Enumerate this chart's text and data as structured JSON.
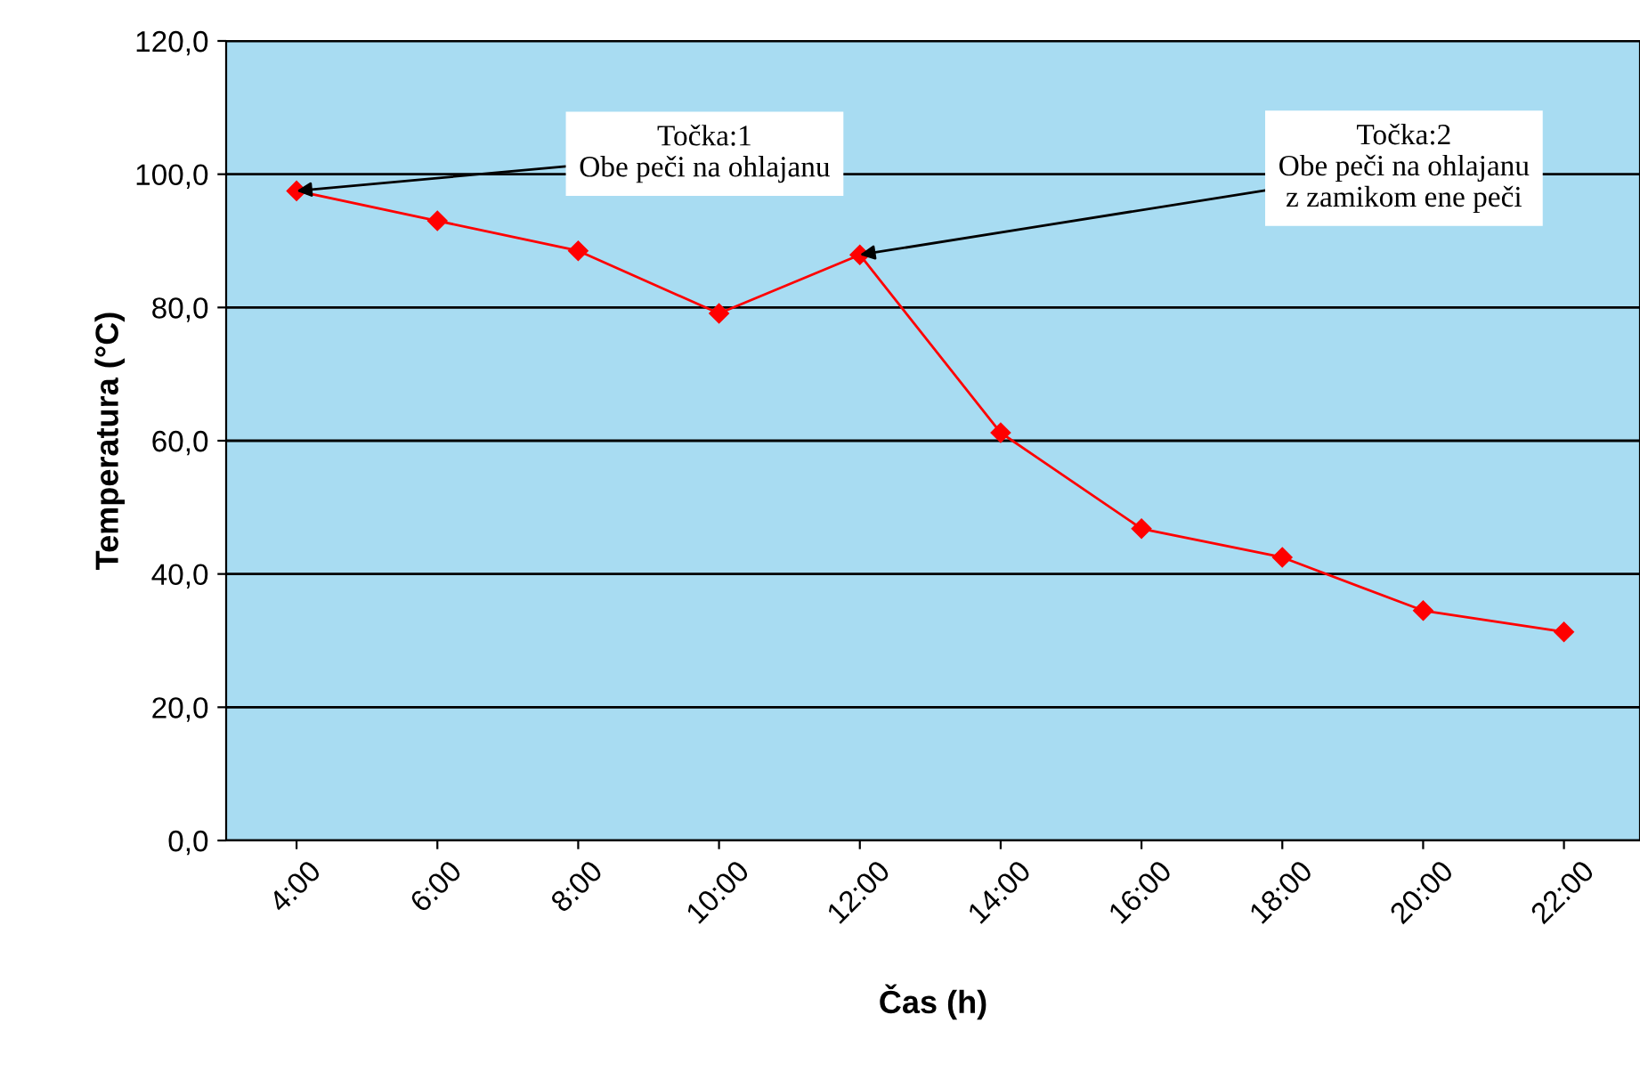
{
  "chart_data": {
    "type": "line",
    "xlabel": "Čas (h)",
    "ylabel": "Temperatura (°C)",
    "categories": [
      "4:00",
      "6:00",
      "8:00",
      "10:00",
      "12:00",
      "14:00",
      "16:00",
      "18:00",
      "20:00",
      "22:00"
    ],
    "series": [
      {
        "color": "#ff0000",
        "values": [
          97.5,
          93.0,
          88.5,
          79.1,
          87.9,
          61.2,
          46.8,
          42.5,
          34.5,
          31.3
        ]
      }
    ],
    "ylim": [
      0,
      120
    ],
    "yticks": [
      {
        "value": 0,
        "label": "0,0"
      },
      {
        "value": 20,
        "label": "20,0"
      },
      {
        "value": 40,
        "label": "40,0"
      },
      {
        "value": 60,
        "label": "60,0"
      },
      {
        "value": 80,
        "label": "80,0"
      },
      {
        "value": 100,
        "label": "100,0"
      },
      {
        "value": 120,
        "label": "120,0"
      }
    ],
    "grid": "y",
    "marker": "diamond",
    "line_style": "solid",
    "legend": false,
    "annotations": [
      {
        "text": "Točka:1\nObe peči na ohlajanu",
        "x": "4:00",
        "y": 97.5
      },
      {
        "text": "Točka:2\nObe peči na ohlajanu\nz zamikom ene peči",
        "x": "12:00",
        "y": 87.9
      }
    ]
  }
}
